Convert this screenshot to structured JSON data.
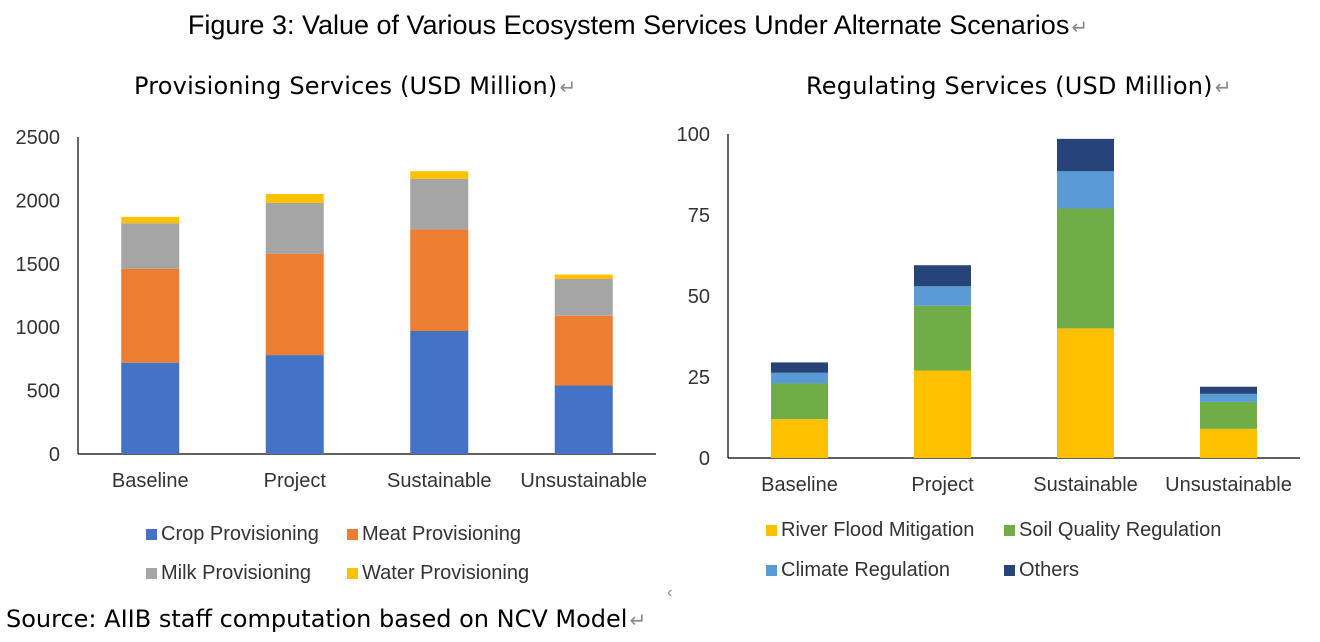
{
  "figure": {
    "title": "Figure 3: Value of Various Ecosystem Services Under Alternate Scenarios",
    "source": "Source: AIIB staff computation based on NCV Model",
    "paragraph_mark": "↵",
    "stray_mark": "‹"
  },
  "chart_data": [
    {
      "type": "bar",
      "stacked": true,
      "title": "Provisioning Services (USD Million)",
      "xlabel": "",
      "ylabel": "",
      "categories": [
        "Baseline",
        "Project",
        "Sustainable",
        "Unsustainable"
      ],
      "ylim": [
        0,
        2500
      ],
      "yticks": [
        0,
        500,
        1000,
        1500,
        2000,
        2500
      ],
      "grid": false,
      "legend_position": "bottom",
      "series": [
        {
          "name": "Crop Provisioning",
          "color": "#4472C4",
          "values": [
            720,
            780,
            970,
            540
          ]
        },
        {
          "name": "Meat Provisioning",
          "color": "#ED7D31",
          "values": [
            740,
            800,
            800,
            550
          ]
        },
        {
          "name": "Milk Provisioning",
          "color": "#A5A5A5",
          "values": [
            360,
            400,
            400,
            290
          ]
        },
        {
          "name": "Water Provisioning",
          "color": "#FFC000",
          "values": [
            50,
            70,
            60,
            35
          ]
        }
      ]
    },
    {
      "type": "bar",
      "stacked": true,
      "title": "Regulating Services (USD Million)",
      "xlabel": "",
      "ylabel": "",
      "categories": [
        "Baseline",
        "Project",
        "Sustainable",
        "Unsustainable"
      ],
      "ylim": [
        0,
        100
      ],
      "yticks": [
        0,
        25,
        50,
        75,
        100
      ],
      "grid": false,
      "legend_position": "bottom",
      "series": [
        {
          "name": "River Flood Mitigation",
          "color": "#FFC000",
          "values": [
            12,
            27,
            40,
            9
          ]
        },
        {
          "name": "Soil Quality Regulation",
          "color": "#70AD47",
          "values": [
            11,
            20,
            37,
            8.3
          ]
        },
        {
          "name": "Climate Regulation",
          "color": "#5B9BD5",
          "values": [
            3.3,
            6,
            11.5,
            2.5
          ]
        },
        {
          "name": "Others",
          "color": "#264478",
          "values": [
            3.2,
            6.5,
            10,
            2.2
          ]
        }
      ]
    }
  ]
}
